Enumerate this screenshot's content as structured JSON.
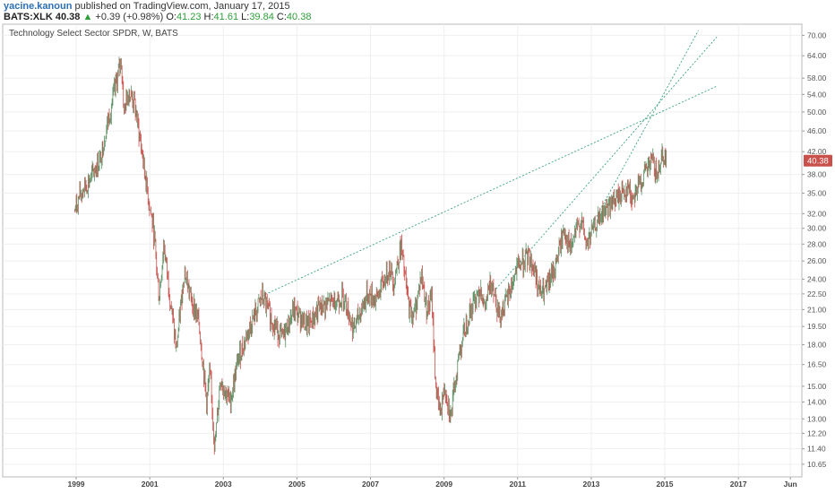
{
  "header": {
    "author": "yacine.kanoun",
    "published_text": "published on TradingView.com, January 17, 2015",
    "symbol": "BATS:XLK",
    "last": "40.38",
    "change_arrow": "▲",
    "change": "+0.39 (+0.98%)",
    "o_label": "O:",
    "o_value": "41.23",
    "h_label": "H:",
    "h_value": "41.61",
    "l_label": "L:",
    "l_value": "39.84",
    "c_label": "C:",
    "c_value": "40.38"
  },
  "chart_data": {
    "type": "candlestick",
    "title": "Technology Select Sector SPDR, W, BATS",
    "y_scale": "log",
    "ylim": [
      10.4,
      71.5
    ],
    "y_ticks": [
      "70.00",
      "64.00",
      "58.00",
      "54.00",
      "50.00",
      "46.00",
      "42.00",
      "38.00",
      "35.00",
      "32.00",
      "30.00",
      "28.00",
      "26.00",
      "24.00",
      "22.50",
      "21.00",
      "19.50",
      "18.00",
      "16.50",
      "15.00",
      "14.00",
      "13.00",
      "12.20",
      "11.40",
      "10.65"
    ],
    "x_ticks": [
      "1999",
      "2001",
      "2003",
      "2005",
      "2007",
      "2009",
      "2011",
      "2013",
      "2015",
      "2017",
      "Jun"
    ],
    "last_price_label": "40.38",
    "grid": true,
    "colors": {
      "up": "#5a8f62",
      "down": "#c9504b",
      "trendline": "#3aa37e",
      "last_price_bg": "#c9504b"
    },
    "price_path": [
      [
        "1998-12-18",
        32.5
      ],
      [
        "1999-03-01",
        35.5
      ],
      [
        "1999-06-01",
        37.5
      ],
      [
        "1999-09-01",
        41.0
      ],
      [
        "1999-11-01",
        47.0
      ],
      [
        "2000-01-01",
        53.0
      ],
      [
        "2000-03-24",
        63.0
      ],
      [
        "2000-04-20",
        50.0
      ],
      [
        "2000-06-01",
        55.0
      ],
      [
        "2000-08-01",
        52.0
      ],
      [
        "2000-10-15",
        42.0
      ],
      [
        "2000-12-20",
        34.0
      ],
      [
        "2001-02-15",
        29.0
      ],
      [
        "2001-04-03",
        22.0
      ],
      [
        "2001-05-20",
        28.0
      ],
      [
        "2001-07-01",
        24.0
      ],
      [
        "2001-09-21",
        17.5
      ],
      [
        "2001-12-10",
        25.0
      ],
      [
        "2002-02-15",
        22.0
      ],
      [
        "2002-05-01",
        20.0
      ],
      [
        "2002-07-20",
        14.0
      ],
      [
        "2002-08-20",
        16.0
      ],
      [
        "2002-10-09",
        11.4
      ],
      [
        "2002-12-01",
        15.5
      ],
      [
        "2003-03-10",
        14.0
      ],
      [
        "2003-06-01",
        17.0
      ],
      [
        "2003-09-01",
        19.0
      ],
      [
        "2003-12-01",
        21.0
      ],
      [
        "2004-01-20",
        22.3
      ],
      [
        "2004-05-01",
        20.0
      ],
      [
        "2004-08-10",
        18.5
      ],
      [
        "2004-12-01",
        21.0
      ],
      [
        "2005-04-20",
        19.5
      ],
      [
        "2005-08-01",
        21.0
      ],
      [
        "2005-12-01",
        21.7
      ],
      [
        "2006-04-15",
        22.3
      ],
      [
        "2006-07-15",
        19.2
      ],
      [
        "2006-12-01",
        22.5
      ],
      [
        "2007-03-01",
        22.0
      ],
      [
        "2007-07-15",
        25.5
      ],
      [
        "2007-08-15",
        23.5
      ],
      [
        "2007-10-31",
        27.8
      ],
      [
        "2008-01-20",
        21.0
      ],
      [
        "2008-03-10",
        20.5
      ],
      [
        "2008-05-20",
        24.5
      ],
      [
        "2008-07-15",
        21.0
      ],
      [
        "2008-09-01",
        22.0
      ],
      [
        "2008-10-10",
        15.0
      ],
      [
        "2008-11-20",
        13.3
      ],
      [
        "2009-01-10",
        15.0
      ],
      [
        "2009-03-09",
        13.1
      ],
      [
        "2009-06-01",
        17.5
      ],
      [
        "2009-09-01",
        20.5
      ],
      [
        "2009-12-30",
        23.3
      ],
      [
        "2010-02-05",
        21.0
      ],
      [
        "2010-04-20",
        24.0
      ],
      [
        "2010-07-01",
        20.5
      ],
      [
        "2010-09-01",
        21.5
      ],
      [
        "2010-12-30",
        25.3
      ],
      [
        "2011-04-20",
        26.5
      ],
      [
        "2011-06-20",
        25.0
      ],
      [
        "2011-08-10",
        22.5
      ],
      [
        "2011-10-04",
        22.8
      ],
      [
        "2011-12-30",
        25.0
      ],
      [
        "2012-04-10",
        30.0
      ],
      [
        "2012-06-01",
        27.2
      ],
      [
        "2012-09-20",
        31.3
      ],
      [
        "2012-11-15",
        27.8
      ],
      [
        "2013-02-01",
        30.2
      ],
      [
        "2013-05-20",
        32.5
      ],
      [
        "2013-08-01",
        33.5
      ],
      [
        "2013-12-30",
        36.0
      ],
      [
        "2014-02-05",
        34.2
      ],
      [
        "2014-06-01",
        37.5
      ],
      [
        "2014-09-01",
        40.5
      ],
      [
        "2014-10-15",
        37.5
      ],
      [
        "2014-12-01",
        42.0
      ],
      [
        "2015-01-17",
        40.38
      ]
    ],
    "trendlines": [
      {
        "start": [
          "2004-01-20",
          22.3
        ],
        "end": [
          "2016-06-01",
          56.0
        ]
      },
      {
        "start": [
          "2010-06-01",
          23.0
        ],
        "end": [
          "2016-06-01",
          69.5
        ]
      },
      {
        "start": [
          "2013-01-01",
          30.3
        ],
        "end": [
          "2015-12-01",
          71.5
        ]
      }
    ]
  }
}
